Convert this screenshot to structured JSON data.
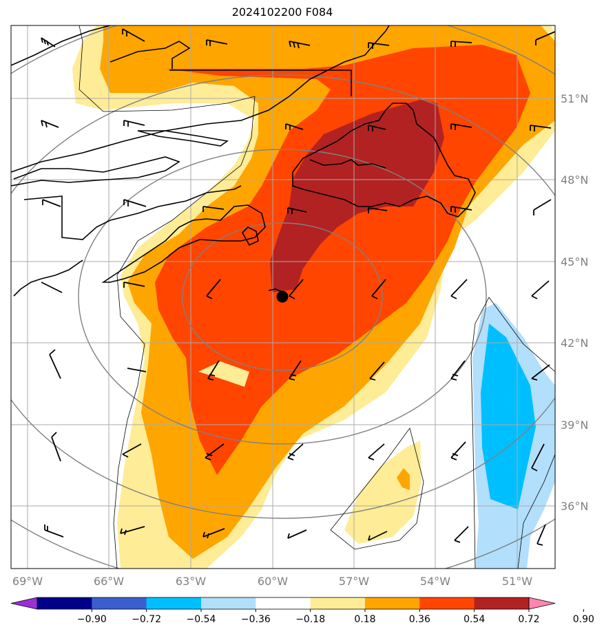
{
  "title": "2024102200 F084",
  "lon_labels": [
    "69°W",
    "66°W",
    "63°W",
    "60°W",
    "57°W",
    "54°W",
    "51°W"
  ],
  "lat_labels": [
    "51°N",
    "48°N",
    "45°N",
    "42°N",
    "39°N",
    "36°N"
  ],
  "colorbar": {
    "ticks": [
      "−0.90",
      "−0.72",
      "−0.54",
      "−0.36",
      "−0.18",
      "0.18",
      "0.36",
      "0.54",
      "0.72",
      "0.90"
    ],
    "colors": [
      "#9b30d9",
      "#00008b",
      "#3a5fcd",
      "#00bfff",
      "#b2dffc",
      "#ffffff",
      "#feec96",
      "#ffa500",
      "#ff4500",
      "#b22222",
      "#ff85b0"
    ]
  },
  "colors": {
    "yellow": "#feec96",
    "orange": "#ffa500",
    "red_orange": "#ff4500",
    "dark_red": "#b22222",
    "light_blue": "#b2dffc",
    "cyan": "#00bfff",
    "grid": "#aaaaaa",
    "range_rings": "#808080",
    "tick_label": "#808080"
  },
  "storm_center": {
    "lon": "59.7°W",
    "lat": "43.7°N"
  }
}
